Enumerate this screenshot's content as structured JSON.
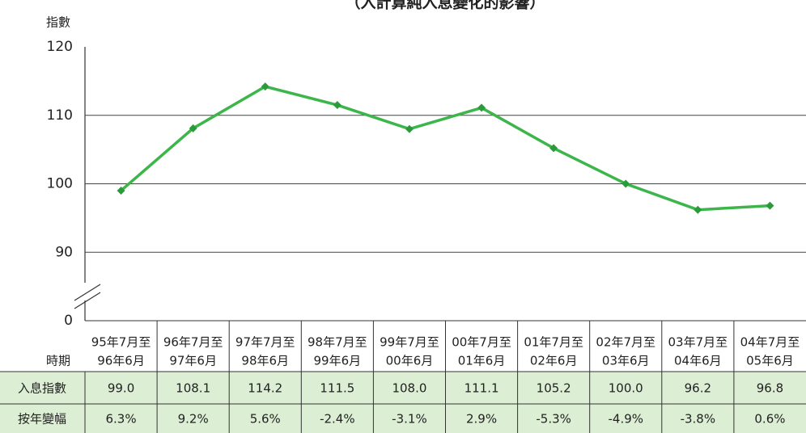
{
  "chart_data": {
    "type": "line",
    "title": "（入計算純入息變化的影響）",
    "y_label": "指數",
    "row_header_period": "時期",
    "row_header_index": "入息指數",
    "row_header_change": "按年變幅",
    "categories": [
      [
        "95年7月至",
        "96年6月"
      ],
      [
        "96年7月至",
        "97年6月"
      ],
      [
        "97年7月至",
        "98年6月"
      ],
      [
        "98年7月至",
        "99年6月"
      ],
      [
        "99年7月至",
        "00年6月"
      ],
      [
        "00年7月至",
        "01年6月"
      ],
      [
        "01年7月至",
        "02年6月"
      ],
      [
        "02年7月至",
        "03年6月"
      ],
      [
        "03年7月至",
        "04年6月"
      ],
      [
        "04年7月至",
        "05年6月"
      ]
    ],
    "series": [
      {
        "name": "入息指數",
        "color": "#3cb54a",
        "values": [
          99.0,
          108.1,
          114.2,
          111.5,
          108.0,
          111.1,
          105.2,
          100.0,
          96.2,
          96.8
        ],
        "value_labels": [
          "99.0",
          "108.1",
          "114.2",
          "111.5",
          "108.0",
          "111.1",
          "105.2",
          "100.0",
          "96.2",
          "96.8"
        ]
      }
    ],
    "changes": [
      6.3,
      9.2,
      5.6,
      -2.4,
      -3.1,
      2.9,
      -5.3,
      -4.9,
      -3.8,
      0.6
    ],
    "change_labels": [
      "6.3%",
      "9.2%",
      "5.6%",
      "-2.4%",
      "-3.1%",
      "2.9%",
      "-5.3%",
      "-4.9%",
      "-3.8%",
      "0.6%"
    ],
    "ylim": [
      0,
      120
    ],
    "ybreak": [
      0,
      80
    ],
    "yticks": [
      0,
      90,
      100,
      110,
      120
    ],
    "grid": true
  }
}
